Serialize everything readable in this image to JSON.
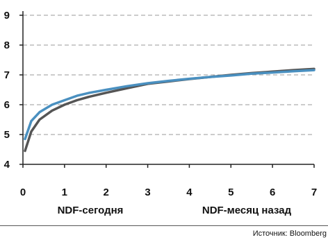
{
  "chart_data": {
    "type": "line",
    "xlim": [
      0,
      7
    ],
    "ylim": [
      4,
      9
    ],
    "x_ticks": [
      0,
      1,
      2,
      3,
      4,
      5,
      6,
      7
    ],
    "x_tick_labels": [
      "0",
      "1",
      "2",
      "3",
      "4",
      "5",
      "6",
      "7"
    ],
    "y_ticks": [
      4,
      5,
      6,
      7,
      8,
      9
    ],
    "y_tick_labels": [
      "4",
      "5",
      "6",
      "7",
      "8",
      "9"
    ],
    "grid": "horizontal dashed",
    "series": [
      {
        "name": "NDF-сегодня",
        "color": "#4a90c0",
        "x": [
          0.05,
          0.2,
          0.4,
          0.7,
          1.0,
          1.3,
          1.6,
          2.0,
          2.5,
          3.0,
          3.5,
          4.0,
          4.5,
          5.0,
          5.5,
          6.0,
          6.5,
          7.0
        ],
        "y": [
          4.85,
          5.45,
          5.75,
          6.0,
          6.15,
          6.3,
          6.4,
          6.5,
          6.62,
          6.72,
          6.8,
          6.87,
          6.93,
          6.98,
          7.04,
          7.08,
          7.12,
          7.16
        ]
      },
      {
        "name": "NDF-месяц назад",
        "color": "#555555",
        "x": [
          0.05,
          0.2,
          0.4,
          0.7,
          1.0,
          1.3,
          1.6,
          2.0,
          2.5,
          3.0,
          3.5,
          4.0,
          4.5,
          5.0,
          5.5,
          6.0,
          6.5,
          7.0
        ],
        "y": [
          4.45,
          5.1,
          5.5,
          5.8,
          6.0,
          6.15,
          6.27,
          6.4,
          6.55,
          6.7,
          6.78,
          6.86,
          6.93,
          7.0,
          7.06,
          7.11,
          7.16,
          7.2
        ]
      }
    ]
  },
  "source_text": "Источник: Bloomberg"
}
